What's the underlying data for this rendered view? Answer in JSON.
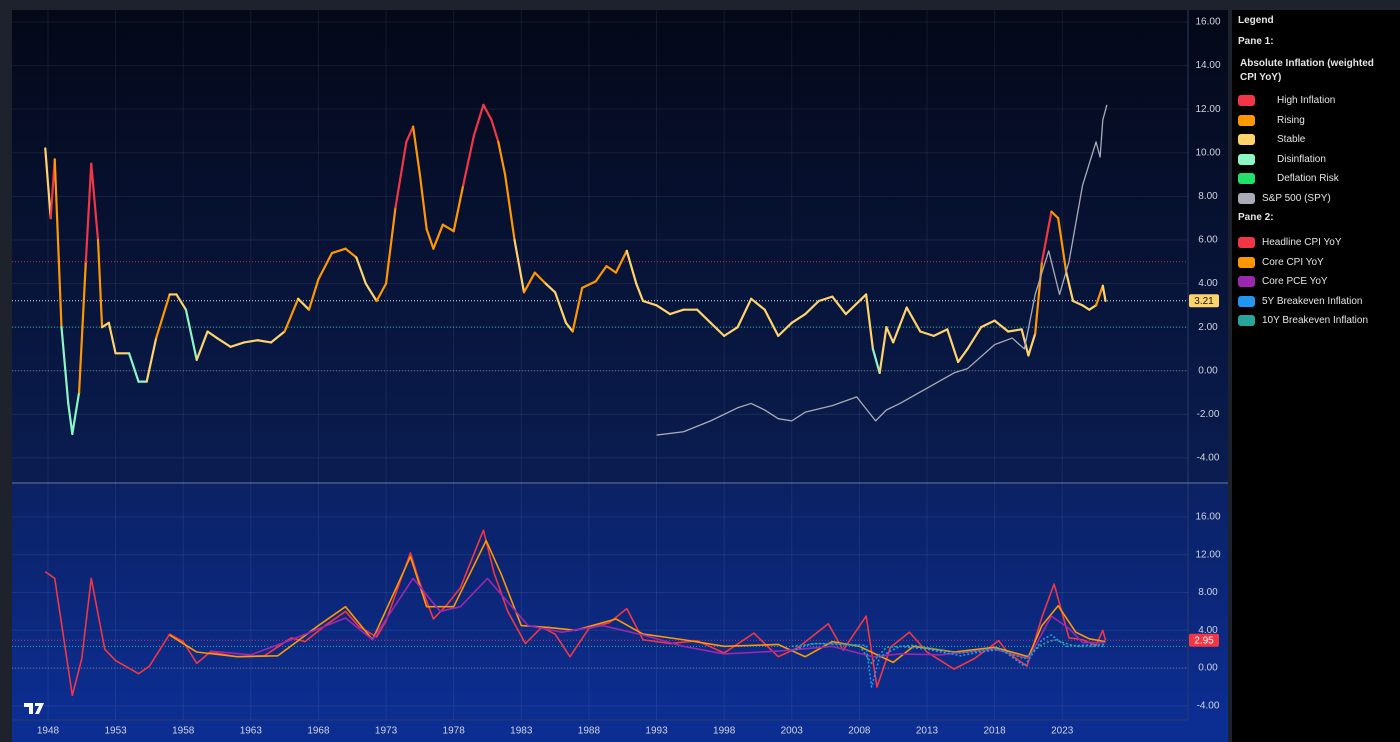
{
  "legend": {
    "title": "Legend",
    "pane_labels": [
      "Pane 1:",
      "Pane 2:"
    ]
  },
  "chart_data": [
    {
      "type": "line",
      "xlim": [
        1945.34,
        2032.3
      ],
      "ylim": [
        -5.15,
        16.55
      ],
      "yticks": [
        {
          "value": 16,
          "label": "16.00"
        },
        {
          "value": 14,
          "label": "14.00"
        },
        {
          "value": 12,
          "label": "12.00"
        },
        {
          "value": 10,
          "label": "10.00"
        },
        {
          "value": 8,
          "label": "8.00"
        },
        {
          "value": 6,
          "label": "6.00"
        },
        {
          "value": 4,
          "label": "4.00"
        },
        {
          "value": 2,
          "label": "2.00"
        },
        {
          "value": 0,
          "label": "0.00"
        },
        {
          "value": -2,
          "label": "-2.00"
        },
        {
          "value": -4,
          "label": "-4.00"
        }
      ],
      "grid": true,
      "regimes": [
        {
          "name": "High Inflation",
          "color": "#f23645"
        },
        {
          "name": "Rising",
          "color": "#ff9800"
        },
        {
          "name": "Stable",
          "color": "#ffd36b"
        },
        {
          "name": "Disinflation",
          "color": "#8ef5c4"
        },
        {
          "name": "Deflation Risk",
          "color": "#22e06a"
        }
      ],
      "reference_lines": [
        {
          "value": 5,
          "color": "#f23645"
        },
        {
          "value": 3.21,
          "color": "#ffffff",
          "badge": "#ffd36b"
        },
        {
          "value": 2,
          "color": "#26c6a0"
        },
        {
          "value": 0,
          "color": "#787b86"
        }
      ],
      "series": [
        {
          "name": "Absolute Inflation (weighted CPI YoY)",
          "x": [
            1947.8,
            1948.2,
            1948.5,
            1949,
            1949.5,
            1949.8,
            1950.3,
            1950.8,
            1951.2,
            1951.7,
            1952,
            1952.5,
            1953,
            1954,
            1954.7,
            1955.3,
            1956,
            1957,
            1957.5,
            1958.2,
            1959,
            1959.8,
            1960.5,
            1961.5,
            1962.5,
            1963.5,
            1964.5,
            1965.5,
            1966.5,
            1967.3,
            1968,
            1969,
            1970,
            1970.8,
            1971.5,
            1972.3,
            1973,
            1973.7,
            1974.5,
            1975,
            1975.5,
            1976,
            1976.5,
            1977.2,
            1978,
            1978.7,
            1979.5,
            1980.2,
            1980.8,
            1981.3,
            1981.8,
            1982.5,
            1983.2,
            1984,
            1984.8,
            1985.5,
            1986.3,
            1986.8,
            1987.5,
            1988.5,
            1989.3,
            1990,
            1990.8,
            1991.5,
            1992,
            1993,
            1994,
            1995,
            1996,
            1997,
            1998,
            1999,
            2000,
            2001,
            2002,
            2003,
            2004,
            2005,
            2006,
            2007,
            2008.5,
            2009,
            2009.5,
            2010,
            2010.5,
            2011.5,
            2012.5,
            2013.5,
            2014.5,
            2015.3,
            2016,
            2017,
            2018,
            2019,
            2020,
            2020.5,
            2021,
            2021.5,
            2022.2,
            2022.7,
            2023.3,
            2023.8,
            2024.5,
            2025,
            2025.5,
            2026,
            2026.2
          ],
          "values": [
            10.2,
            7,
            9.7,
            2,
            -1.5,
            -2.9,
            -1,
            5,
            9.5,
            6,
            2,
            2.2,
            0.8,
            0.8,
            -0.5,
            -0.5,
            1.5,
            3.5,
            3.5,
            2.8,
            0.5,
            1.8,
            1.5,
            1.1,
            1.3,
            1.4,
            1.3,
            1.8,
            3.3,
            2.8,
            4.2,
            5.4,
            5.6,
            5.2,
            4.0,
            3.2,
            4.0,
            7.5,
            10.5,
            11.2,
            9,
            6.5,
            5.6,
            6.7,
            6.4,
            8.5,
            10.8,
            12.2,
            11.5,
            10.5,
            9,
            6,
            3.6,
            4.5,
            4.0,
            3.6,
            2.2,
            1.8,
            3.8,
            4.1,
            4.8,
            4.5,
            5.5,
            4.0,
            3.2,
            3.0,
            2.6,
            2.8,
            2.8,
            2.2,
            1.6,
            2.0,
            3.3,
            2.8,
            1.6,
            2.2,
            2.6,
            3.2,
            3.4,
            2.6,
            3.5,
            1.0,
            -0.1,
            2.0,
            1.3,
            2.9,
            1.8,
            1.6,
            1.9,
            0.4,
            1.0,
            2.0,
            2.3,
            1.8,
            1.9,
            0.7,
            1.7,
            5.0,
            7.3,
            7.0,
            4.5,
            3.2,
            3.0,
            2.8,
            3.0,
            3.9,
            3.21
          ],
          "regime": [
            2,
            2,
            0,
            1,
            3,
            3,
            3,
            1,
            0,
            0,
            1,
            2,
            2,
            2,
            3,
            3,
            2,
            1,
            2,
            2,
            3,
            2,
            2,
            2,
            2,
            2,
            2,
            2,
            1,
            2,
            1,
            1,
            1,
            1,
            2,
            2,
            1,
            1,
            0,
            0,
            1,
            1,
            1,
            1,
            1,
            1,
            0,
            0,
            0,
            0,
            1,
            1,
            2,
            1,
            1,
            2,
            2,
            2,
            1,
            1,
            1,
            1,
            1,
            2,
            2,
            2,
            2,
            2,
            2,
            2,
            2,
            2,
            2,
            2,
            2,
            2,
            2,
            2,
            2,
            2,
            2,
            2,
            3,
            2,
            2,
            2,
            2,
            2,
            2,
            2,
            2,
            2,
            2,
            2,
            2,
            2,
            2,
            1,
            0,
            1,
            1,
            2,
            2,
            2,
            2,
            1,
            2
          ]
        },
        {
          "name": "S&P 500 (SPY)",
          "color": "#a9abb5",
          "x": [
            1993,
            1995,
            1997,
            1999,
            2000,
            2001,
            2002,
            2003,
            2004,
            2006,
            2007.8,
            2009.2,
            2010,
            2011,
            2013,
            2015,
            2016,
            2018,
            2019.3,
            2020.2,
            2021,
            2022,
            2022.8,
            2023.5,
            2024.5,
            2025,
            2025.5,
            2025.8,
            2026,
            2026.3
          ],
          "values": [
            -2.95,
            -2.8,
            -2.3,
            -1.7,
            -1.5,
            -1.8,
            -2.2,
            -2.3,
            -1.9,
            -1.6,
            -1.2,
            -2.3,
            -1.8,
            -1.5,
            -0.8,
            -0.1,
            0.1,
            1.2,
            1.5,
            1.0,
            3.5,
            5.5,
            3.5,
            5.0,
            8.5,
            9.5,
            10.5,
            9.8,
            11.5,
            12.2
          ]
        }
      ]
    },
    {
      "type": "line",
      "xlim": [
        1945.34,
        2032.3
      ],
      "ylim": [
        -5.5,
        19.6
      ],
      "yticks": [
        {
          "value": 16,
          "label": "16.00"
        },
        {
          "value": 12,
          "label": "12.00"
        },
        {
          "value": 8,
          "label": "8.00"
        },
        {
          "value": 4,
          "label": "4.00"
        },
        {
          "value": 0,
          "label": "0.00"
        },
        {
          "value": -4,
          "label": "-4.00"
        }
      ],
      "xticks": [
        1948,
        1953,
        1958,
        1963,
        1968,
        1973,
        1978,
        1983,
        1988,
        1993,
        1998,
        2003,
        2008,
        2013,
        2018,
        2023
      ],
      "grid": true,
      "reference_lines": [
        {
          "value": 2.95,
          "color": "#f23645",
          "badge": "#f23645"
        },
        {
          "value": 2.3,
          "color": "#26c6a0"
        },
        {
          "value": 0,
          "color": "#787b86"
        }
      ],
      "series": [
        {
          "name": "Headline CPI YoY",
          "color": "#f23645",
          "x": [
            1947.8,
            1948.5,
            1949.8,
            1950.5,
            1951.2,
            1951.8,
            1952.2,
            1953,
            1954.7,
            1955.5,
            1957,
            1958,
            1959,
            1960,
            1962,
            1964,
            1966,
            1967,
            1968.5,
            1970,
            1971,
            1972.3,
            1973,
            1974.8,
            1975.5,
            1976.5,
            1977.5,
            1978.5,
            1980.2,
            1981,
            1982,
            1983.3,
            1984.5,
            1985.5,
            1986.6,
            1988,
            1989.5,
            1990.8,
            1992,
            1994,
            1996,
            1998,
            2000.2,
            2002,
            2003.5,
            2005.7,
            2006.8,
            2008.5,
            2009.3,
            2010.3,
            2011.7,
            2013,
            2015,
            2016.5,
            2018.3,
            2019,
            2020.4,
            2021.5,
            2022.4,
            2023.5,
            2024.5,
            2025.5,
            2026,
            2026.2
          ],
          "values": [
            10.2,
            9.5,
            -2.9,
            1,
            9.5,
            5,
            2,
            0.8,
            -0.6,
            0.2,
            3.6,
            2.8,
            0.5,
            1.7,
            1.2,
            1.3,
            3.2,
            2.8,
            4.5,
            6,
            4.4,
            3.3,
            5,
            12.2,
            9,
            5.2,
            6.7,
            8.5,
            14.6,
            10,
            6,
            2.6,
            4.3,
            3.6,
            1.2,
            4.2,
            4.8,
            6.3,
            3.0,
            2.6,
            2.9,
            1.6,
            3.7,
            1.2,
            2.2,
            4.7,
            1.9,
            5.5,
            -2.0,
            2.2,
            3.8,
            1.7,
            -0.1,
            1.0,
            2.9,
            1.6,
            0.2,
            5.4,
            8.9,
            3.2,
            3.0,
            2.4,
            4.0,
            2.95
          ]
        },
        {
          "name": "Core CPI YoY",
          "color": "#ff9800",
          "x": [
            1957,
            1959,
            1962,
            1965,
            1968,
            1970,
            1972,
            1974.8,
            1976,
            1978,
            1980.4,
            1981.5,
            1983,
            1985,
            1987,
            1990,
            1992,
            1995,
            1998,
            2002,
            2004,
            2006,
            2008,
            2010.5,
            2012,
            2015,
            2018,
            2020.5,
            2021.5,
            2022.7,
            2024,
            2025,
            2026.2
          ],
          "values": [
            3.5,
            1.7,
            1.2,
            1.3,
            4.5,
            6.5,
            3,
            11.8,
            6.5,
            6.5,
            13.5,
            10,
            4.5,
            4.3,
            4,
            5.2,
            3.6,
            3,
            2.3,
            2.5,
            1.2,
            2.8,
            2.3,
            0.6,
            2.3,
            1.7,
            2.2,
            1.2,
            4.5,
            6.6,
            3.8,
            3.1,
            2.8
          ]
        },
        {
          "name": "Core PCE YoY",
          "color": "#9c27b0",
          "x": [
            1960,
            1963,
            1966,
            1970,
            1972,
            1975,
            1977,
            1978.5,
            1980.5,
            1982,
            1983.5,
            1986,
            1989,
            1992,
            1995,
            1998,
            2002,
            2006,
            2009,
            2011,
            2014,
            2016,
            2018,
            2020.5,
            2022.2,
            2023.5,
            2024.5,
            2026.2
          ],
          "values": [
            1.8,
            1.4,
            3,
            5.3,
            3,
            9.5,
            6,
            6.5,
            9.5,
            7,
            4.5,
            3.8,
            4.5,
            3.5,
            2.3,
            1.5,
            1.8,
            2.3,
            1.2,
            1.5,
            1.4,
            1.7,
            2.0,
            1.0,
            5.5,
            4.2,
            2.7,
            2.7
          ]
        },
        {
          "name": "5Y Breakeven Inflation",
          "color": "#2196f3",
          "style": "dotted",
          "x": [
            2003,
            2004.5,
            2006,
            2008.5,
            2008.9,
            2009.5,
            2011,
            2013,
            2015.5,
            2016.5,
            2018.5,
            2020.2,
            2021.5,
            2022.2,
            2023.3,
            2024.5,
            2026.2
          ],
          "values": [
            1.8,
            2.6,
            2.6,
            2.4,
            -2.0,
            1.2,
            2.3,
            2.0,
            1.3,
            1.6,
            2.0,
            0.2,
            3.0,
            3.5,
            2.3,
            2.4,
            2.5
          ]
        },
        {
          "name": "10Y Breakeven Inflation",
          "color": "#26a69a",
          "style": "dotted",
          "x": [
            2003,
            2005,
            2008,
            2008.9,
            2010,
            2012,
            2015.5,
            2018,
            2020.2,
            2021.5,
            2022.4,
            2024,
            2026.2
          ],
          "values": [
            2.3,
            2.6,
            2.4,
            0.5,
            2.2,
            2.4,
            1.6,
            2.1,
            1.0,
            2.5,
            3.0,
            2.3,
            2.3
          ]
        }
      ]
    }
  ]
}
